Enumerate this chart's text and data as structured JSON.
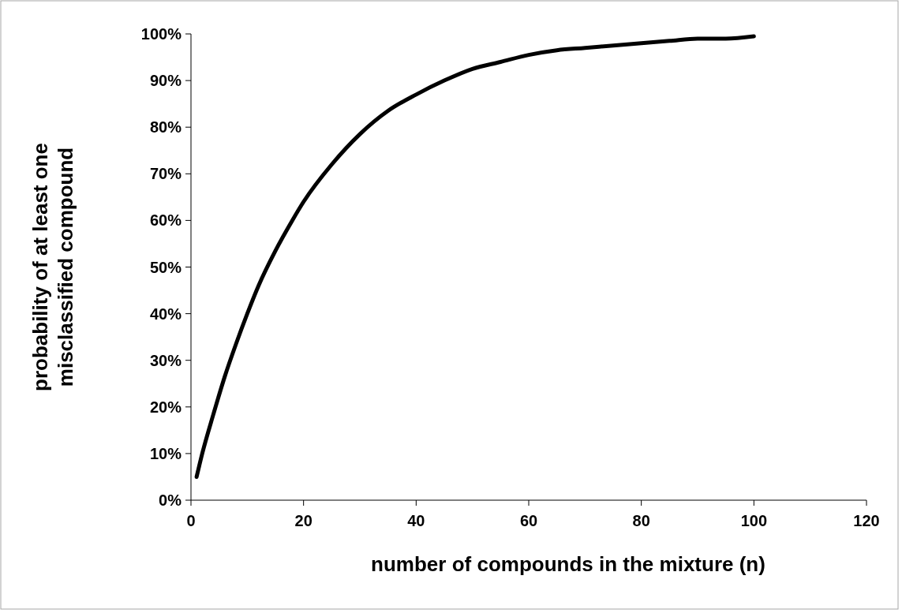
{
  "chart_data": {
    "type": "line",
    "xlabel": "number of compounds in the mixture (n)",
    "ylabel": "probability of at least one misclassified compound",
    "x": [
      1,
      2,
      4,
      6,
      8,
      10,
      12,
      15,
      18,
      20,
      25,
      30,
      35,
      40,
      45,
      50,
      55,
      60,
      65,
      70,
      75,
      80,
      85,
      90,
      95,
      100
    ],
    "series": [
      {
        "color": "#000000",
        "values": [
          5,
          10,
          18.5,
          26.5,
          33.5,
          40,
          46,
          53.5,
          60,
          64,
          72,
          78.5,
          83.5,
          87,
          90,
          92.5,
          94,
          95.5,
          96.5,
          97,
          97.5,
          98,
          98.5,
          99,
          99,
          99.5
        ]
      }
    ],
    "xlim": [
      0,
      120
    ],
    "xticks": [
      0,
      20,
      40,
      60,
      80,
      100,
      120
    ],
    "ylim": [
      0,
      100
    ],
    "yticks": [
      {
        "value": 0,
        "label": "0%"
      },
      {
        "value": 10,
        "label": "10%"
      },
      {
        "value": 20,
        "label": "20%"
      },
      {
        "value": 30,
        "label": "30%"
      },
      {
        "value": 40,
        "label": "40%"
      },
      {
        "value": 50,
        "label": "50%"
      },
      {
        "value": 60,
        "label": "60%"
      },
      {
        "value": 70,
        "label": "70%"
      },
      {
        "value": 80,
        "label": "80%"
      },
      {
        "value": 90,
        "label": "90%"
      },
      {
        "value": 100,
        "label": "100%"
      }
    ],
    "grid": false,
    "marker": "none",
    "line_style": "solid"
  }
}
